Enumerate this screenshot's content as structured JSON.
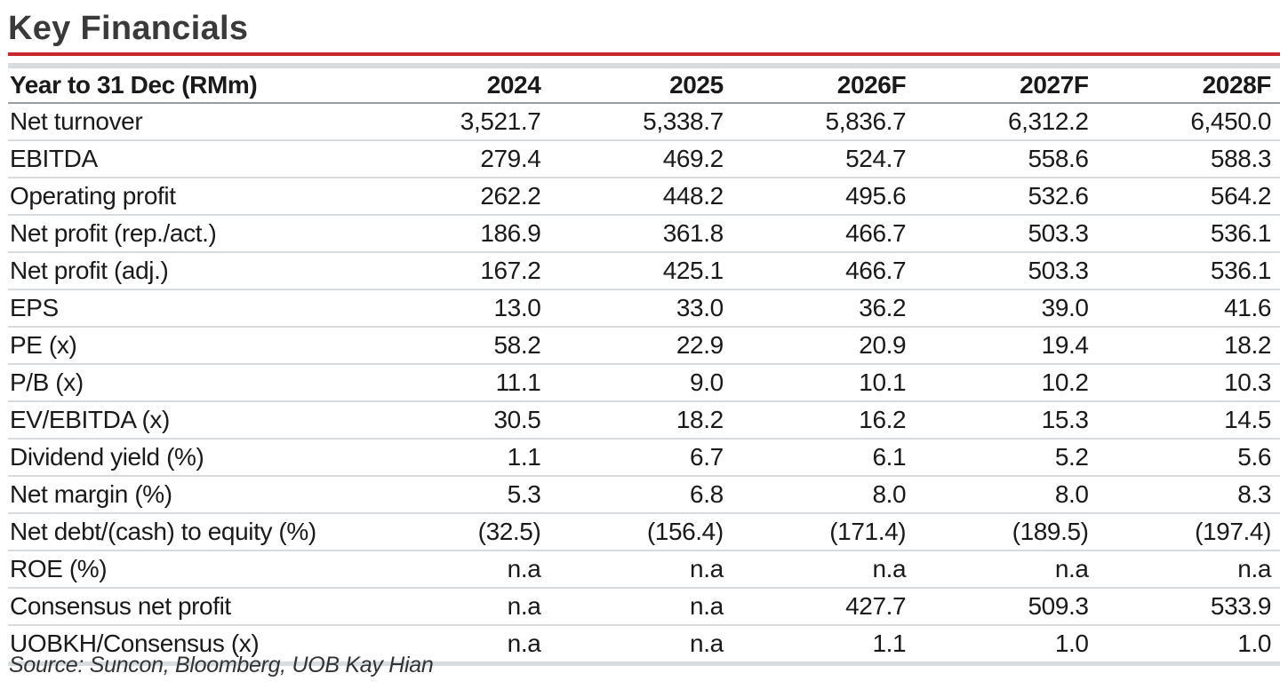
{
  "title": "Key Financials",
  "accent_color": "#c8272d",
  "rule_color": "#d9dcde",
  "table": {
    "headers": [
      "Year to 31 Dec (RMm)",
      "2024",
      "2025",
      "2026F",
      "2027F",
      "2028F"
    ],
    "rows": [
      {
        "label": "Net turnover",
        "values": [
          "3,521.7",
          "5,338.7",
          "5,836.7",
          "6,312.2",
          "6,450.0"
        ]
      },
      {
        "label": "EBITDA",
        "values": [
          "279.4",
          "469.2",
          "524.7",
          "558.6",
          "588.3"
        ]
      },
      {
        "label": "Operating profit",
        "values": [
          "262.2",
          "448.2",
          "495.6",
          "532.6",
          "564.2"
        ]
      },
      {
        "label": "Net profit (rep./act.)",
        "values": [
          "186.9",
          "361.8",
          "466.7",
          "503.3",
          "536.1"
        ]
      },
      {
        "label": "Net profit (adj.)",
        "values": [
          "167.2",
          "425.1",
          "466.7",
          "503.3",
          "536.1"
        ]
      },
      {
        "label": "EPS",
        "values": [
          "13.0",
          "33.0",
          "36.2",
          "39.0",
          "41.6"
        ]
      },
      {
        "label": "PE (x)",
        "values": [
          "58.2",
          "22.9",
          "20.9",
          "19.4",
          "18.2"
        ]
      },
      {
        "label": "P/B (x)",
        "values": [
          "11.1",
          "9.0",
          "10.1",
          "10.2",
          "10.3"
        ]
      },
      {
        "label": "EV/EBITDA (x)",
        "values": [
          "30.5",
          "18.2",
          "16.2",
          "15.3",
          "14.5"
        ]
      },
      {
        "label": "Dividend yield (%)",
        "values": [
          "1.1",
          "6.7",
          "6.1",
          "5.2",
          "5.6"
        ]
      },
      {
        "label": "Net margin (%)",
        "values": [
          "5.3",
          "6.8",
          "8.0",
          "8.0",
          "8.3"
        ]
      },
      {
        "label": "Net debt/(cash) to equity (%)",
        "values": [
          "(32.5)",
          "(156.4)",
          "(171.4)",
          "(189.5)",
          "(197.4)"
        ]
      },
      {
        "label": "ROE (%)",
        "values": [
          "n.a",
          "n.a",
          "n.a",
          "n.a",
          "n.a"
        ]
      },
      {
        "label": "Consensus net profit",
        "values": [
          "n.a",
          "n.a",
          "427.7",
          "509.3",
          "533.9"
        ]
      },
      {
        "label": "UOBKH/Consensus (x)",
        "values": [
          "n.a",
          "n.a",
          "1.1",
          "1.0",
          "1.0"
        ]
      }
    ]
  },
  "source": "Source: Suncon, Bloomberg, UOB Kay Hian"
}
